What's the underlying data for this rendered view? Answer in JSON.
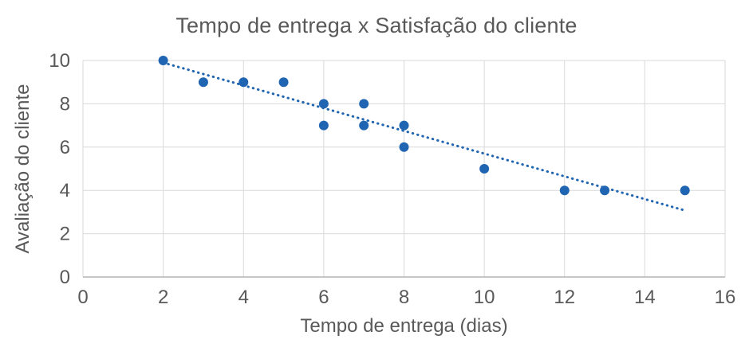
{
  "chart_data": {
    "type": "scatter",
    "title": "Tempo de entrega x Satisfação do cliente",
    "xlabel": "Tempo de entrega (dias)",
    "ylabel": "Avaliação do cliente",
    "xlim": [
      0,
      16
    ],
    "ylim": [
      0,
      10
    ],
    "x_ticks": [
      0,
      2,
      4,
      6,
      8,
      10,
      12,
      14,
      16
    ],
    "y_ticks": [
      0,
      2,
      4,
      6,
      8,
      10
    ],
    "grid": true,
    "legend": false,
    "points": [
      {
        "x": 2,
        "y": 10
      },
      {
        "x": 3,
        "y": 9
      },
      {
        "x": 4,
        "y": 9
      },
      {
        "x": 5,
        "y": 9
      },
      {
        "x": 6,
        "y": 8
      },
      {
        "x": 6,
        "y": 7
      },
      {
        "x": 7,
        "y": 8
      },
      {
        "x": 7,
        "y": 7
      },
      {
        "x": 8,
        "y": 7
      },
      {
        "x": 8,
        "y": 6
      },
      {
        "x": 10,
        "y": 5
      },
      {
        "x": 12,
        "y": 4
      },
      {
        "x": 13,
        "y": 4
      },
      {
        "x": 15,
        "y": 4
      }
    ],
    "trendline": {
      "style": "dotted",
      "x_start": 2,
      "y_start": 9.9,
      "x_end": 14.95,
      "y_end": 3.1
    },
    "colors": {
      "marker": "#2065B2",
      "trendline": "#2065B2",
      "gridline": "#D9D9D9",
      "axis_line": "#B3B3B3",
      "text": "#595959"
    }
  }
}
